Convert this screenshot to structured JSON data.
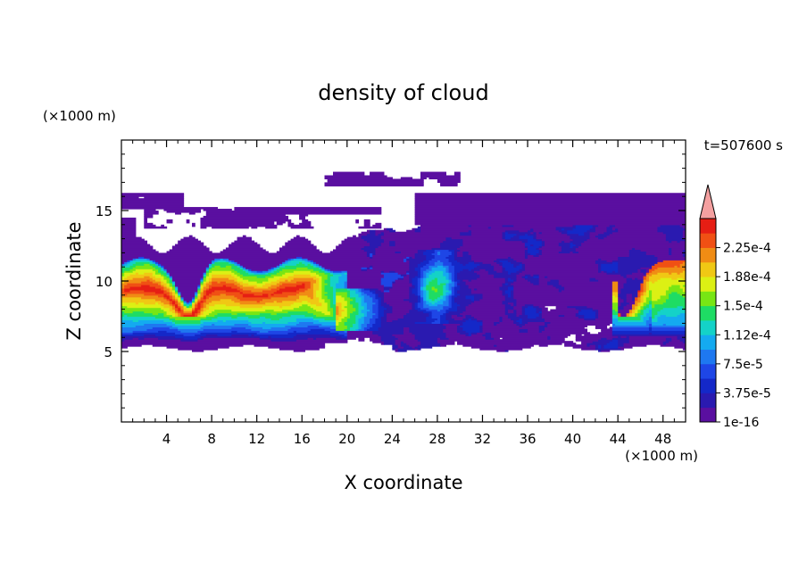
{
  "chart_data": {
    "type": "heatmap",
    "title": "density of cloud",
    "time_label": "t=507600 s",
    "xlabel": "X coordinate",
    "ylabel": "Z coordinate",
    "x_unit": "(×1000 m)",
    "y_unit": "(×1000 m)",
    "xlim": [
      0,
      50
    ],
    "ylim": [
      0,
      20
    ],
    "x_ticks": [
      4,
      8,
      12,
      16,
      20,
      24,
      28,
      32,
      36,
      40,
      44,
      48
    ],
    "y_ticks": [
      5,
      10,
      15
    ],
    "colorbar": {
      "levels": [
        1e-16,
        1.875e-05,
        3.75e-05,
        5.625e-05,
        7.5e-05,
        9.375e-05,
        0.0001125,
        0.00013125,
        0.00015,
        0.00016875,
        0.0001875,
        0.00020625,
        0.000225,
        0.00024375
      ],
      "tick_labels": [
        "1e-16",
        "3.75e-5",
        "7.5e-5",
        "1.12e-4",
        "1.5e-4",
        "1.88e-4",
        "2.25e-4"
      ],
      "tick_levels": [
        1e-16,
        3.75e-05,
        7.5e-05,
        0.0001125,
        0.00015,
        0.0001875,
        0.000225
      ],
      "colors": [
        "#5a0fa0",
        "#2a1ab0",
        "#1428c8",
        "#1e46e6",
        "#1e78f0",
        "#14aaf0",
        "#14d2c8",
        "#1edc64",
        "#78e614",
        "#dcf014",
        "#f0c814",
        "#f08c14",
        "#f05014",
        "#e61e14"
      ],
      "overflow_color": "#f4a0a0"
    },
    "regions": [
      {
        "name": "upper-cloud-deck-band",
        "level": 5e-06,
        "x_range": [
          0,
          50
        ],
        "z_range": [
          5.2,
          16.3
        ]
      },
      {
        "name": "left-dense-core",
        "level": 0.0002,
        "x_range": [
          0,
          20
        ],
        "z_range": [
          5.5,
          11.5
        ]
      },
      {
        "name": "right-dense-core",
        "level": 0.00016,
        "x_range": [
          45,
          50
        ],
        "z_range": [
          6,
          11.5
        ]
      },
      {
        "name": "mid-convective-plume",
        "level": 0.0001,
        "x_range": [
          26,
          30
        ],
        "z_range": [
          7,
          12
        ]
      }
    ]
  }
}
